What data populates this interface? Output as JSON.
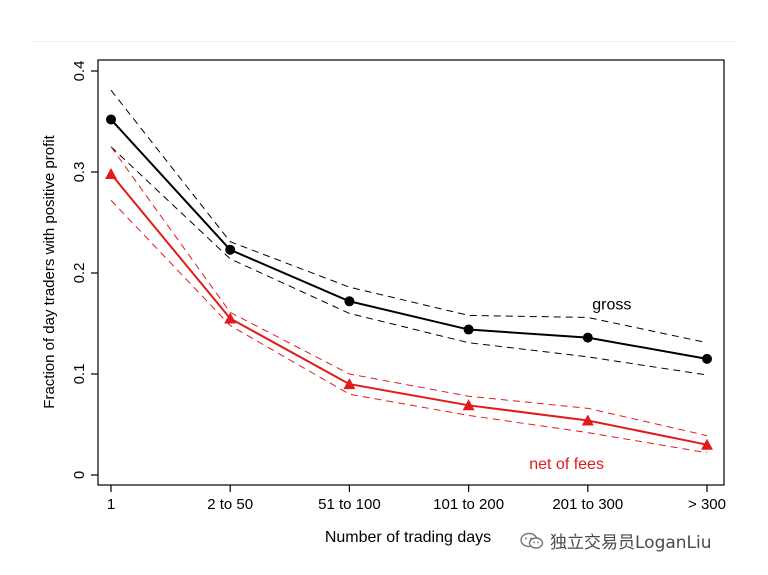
{
  "chart_data": {
    "type": "line",
    "categories": [
      "1",
      "2 to 50",
      "51 to 100",
      "101 to 200",
      "201 to 300",
      "> 300"
    ],
    "xlabel": "Number of trading days",
    "ylabel": "Fraction of day traders with positive profit",
    "ylim": [
      0,
      0.4
    ],
    "yticks": [
      "0",
      "0.1",
      "0.2",
      "0.3",
      "0.4"
    ],
    "grid": false,
    "series": [
      {
        "name": "gross",
        "color": "#000000",
        "marker": "circle",
        "values": [
          0.352,
          0.223,
          0.172,
          0.144,
          0.136,
          0.115
        ],
        "ci_upper": [
          0.381,
          0.231,
          0.186,
          0.158,
          0.156,
          0.131
        ],
        "ci_lower": [
          0.325,
          0.214,
          0.16,
          0.131,
          0.117,
          0.099
        ]
      },
      {
        "name": "net of fees",
        "color": "#e31a1c",
        "marker": "triangle",
        "values": [
          0.298,
          0.155,
          0.09,
          0.069,
          0.054,
          0.03
        ],
        "ci_upper": [
          0.325,
          0.161,
          0.1,
          0.078,
          0.066,
          0.039
        ],
        "ci_lower": [
          0.272,
          0.148,
          0.08,
          0.059,
          0.042,
          0.022
        ]
      }
    ]
  },
  "watermark": {
    "text": "独立交易员LoganLiu",
    "icon": "wechat-icon"
  }
}
